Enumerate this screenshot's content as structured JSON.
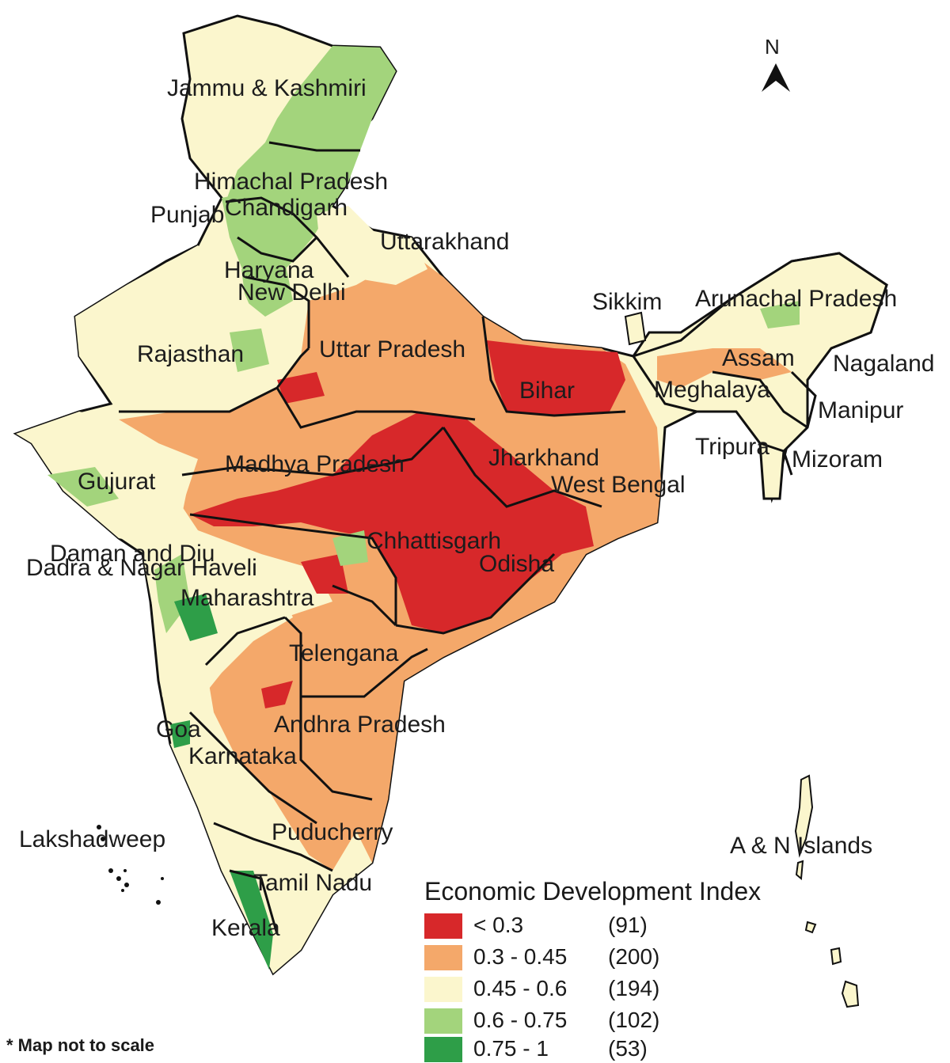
{
  "map": {
    "compass_label": "N",
    "footnote": "* Map not to scale",
    "colors": {
      "lt_0_3": "#d7282a",
      "0_3_0_45": "#f4a86a",
      "0_45_0_6": "#fbf6cd",
      "0_6_0_75": "#a3d47c",
      "0_75_1": "#2e9e48",
      "boundary": "#111111"
    },
    "states": [
      "Jammu & Kashmiri",
      "Himachal Pradesh",
      "Punjab",
      "Chandigarh",
      "Uttarakhand",
      "Haryana",
      "New Delhi",
      "Rajasthan",
      "Uttar Pradesh",
      "Bihar",
      "Sikkim",
      "Arunachal Pradesh",
      "Assam",
      "Nagaland",
      "Meghalaya",
      "Manipur",
      "Tripura",
      "Mizoram",
      "Jharkhand",
      "West Bengal",
      "Gujurat",
      "Madhya Pradesh",
      "Chhattisgarh",
      "Odisha",
      "Daman and Diu",
      "Dadra & Nagar Haveli",
      "Maharashtra",
      "Telengana",
      "Andhra Pradesh",
      "Goa",
      "Karnataka",
      "Lakshadweep",
      "Puducherry",
      "Tamil Nadu",
      "Kerala",
      "A & N Islands"
    ]
  },
  "legend": {
    "title": "Economic Development Index",
    "classes": [
      {
        "range": "< 0.3",
        "count": "(91)",
        "color": "#d7282a"
      },
      {
        "range": "0.3 - 0.45",
        "count": "(200)",
        "color": "#f4a86a"
      },
      {
        "range": "0.45 - 0.6",
        "count": "(194)",
        "color": "#fbf6cd"
      },
      {
        "range": "0.6 - 0.75",
        "count": "(102)",
        "color": "#a3d47c"
      },
      {
        "range": "0.75 - 1",
        "count": "(53)",
        "color": "#2e9e48"
      }
    ]
  }
}
